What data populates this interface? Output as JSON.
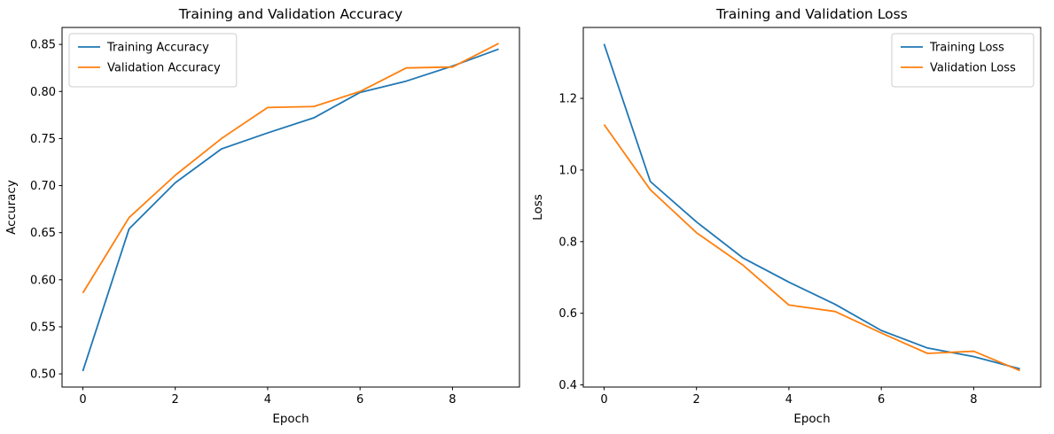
{
  "figure": {
    "background": "#ffffff",
    "text_color": "#000000",
    "spine_color": "#000000",
    "legend_border_color": "#cccccc"
  },
  "chart_data": [
    {
      "type": "line",
      "title": "Training and Validation Accuracy",
      "xlabel": "Epoch",
      "ylabel": "Accuracy",
      "x": [
        0,
        1,
        2,
        3,
        4,
        5,
        6,
        7,
        8,
        9
      ],
      "series": [
        {
          "name": "Training Accuracy",
          "color": "#1f77b4",
          "values": [
            0.503,
            0.654,
            0.703,
            0.739,
            0.756,
            0.772,
            0.799,
            0.811,
            0.827,
            0.845
          ]
        },
        {
          "name": "Validation Accuracy",
          "color": "#ff7f0e",
          "values": [
            0.586,
            0.666,
            0.711,
            0.75,
            0.783,
            0.784,
            0.8,
            0.825,
            0.826,
            0.851
          ]
        }
      ],
      "xticks": [
        0,
        2,
        4,
        6,
        8
      ],
      "xtick_labels": [
        "0",
        "2",
        "4",
        "6",
        "8"
      ],
      "yticks": [
        0.5,
        0.55,
        0.6,
        0.65,
        0.7,
        0.75,
        0.8,
        0.85
      ],
      "ytick_labels": [
        "0.50",
        "0.55",
        "0.60",
        "0.65",
        "0.70",
        "0.75",
        "0.80",
        "0.85"
      ],
      "xlim": [
        -0.45,
        9.45
      ],
      "ylim": [
        0.486,
        0.868
      ],
      "grid": false,
      "legend_position": "upper-left"
    },
    {
      "type": "line",
      "title": "Training and Validation Loss",
      "xlabel": "Epoch",
      "ylabel": "Loss",
      "x": [
        0,
        1,
        2,
        3,
        4,
        5,
        6,
        7,
        8,
        9
      ],
      "series": [
        {
          "name": "Training Loss",
          "color": "#1f77b4",
          "values": [
            1.352,
            0.968,
            0.855,
            0.755,
            0.687,
            0.625,
            0.552,
            0.503,
            0.479,
            0.445
          ]
        },
        {
          "name": "Validation Loss",
          "color": "#ff7f0e",
          "values": [
            1.127,
            0.945,
            0.825,
            0.735,
            0.623,
            0.605,
            0.545,
            0.488,
            0.494,
            0.44
          ]
        }
      ],
      "xticks": [
        0,
        2,
        4,
        6,
        8
      ],
      "xtick_labels": [
        "0",
        "2",
        "4",
        "6",
        "8"
      ],
      "yticks": [
        0.4,
        0.6,
        0.8,
        1.0,
        1.2
      ],
      "ytick_labels": [
        "0.4",
        "0.6",
        "0.8",
        "1.0",
        "1.2"
      ],
      "xlim": [
        -0.45,
        9.45
      ],
      "ylim": [
        0.394,
        1.398
      ],
      "grid": false,
      "legend_position": "upper-right"
    }
  ]
}
